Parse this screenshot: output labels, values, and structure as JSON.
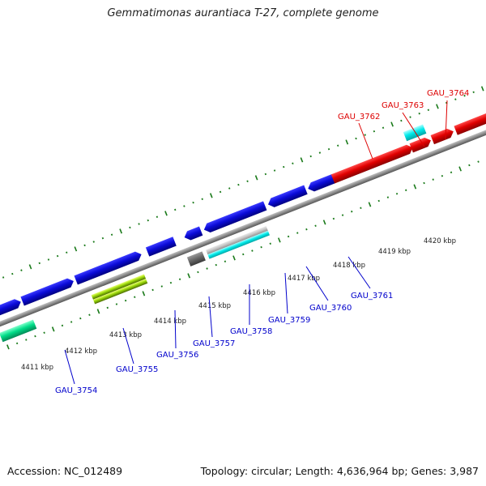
{
  "title": "Gemmatimonas aurantiaca T-27, complete genome",
  "footer": {
    "accession": "Accession: NC_012489",
    "summary": "Topology: circular; Length: 4,636,964 bp; Genes: 3,987"
  },
  "colors": {
    "tick": "#1a7a1a",
    "backbone": "#8c8c8c",
    "gene_default": "#0b0bd8",
    "label_blue": "#0000cc",
    "label_red": "#dd0000"
  },
  "kbp_labels": [
    "4411 kbp",
    "4412 kbp",
    "4413 kbp",
    "4414 kbp",
    "4415 kbp",
    "4416 kbp",
    "4417 kbp",
    "4418 kbp",
    "4419 kbp",
    "4420 kbp"
  ],
  "genes": [
    {
      "name": "GAU_3754",
      "label_color": "blue"
    },
    {
      "name": "GAU_3755",
      "label_color": "blue"
    },
    {
      "name": "GAU_3756",
      "label_color": "blue"
    },
    {
      "name": "GAU_3757",
      "label_color": "blue"
    },
    {
      "name": "GAU_3758",
      "label_color": "blue"
    },
    {
      "name": "GAU_3759",
      "label_color": "blue"
    },
    {
      "name": "GAU_3760",
      "label_color": "blue"
    },
    {
      "name": "GAU_3761",
      "label_color": "blue"
    },
    {
      "name": "GAU_3762",
      "label_color": "red"
    },
    {
      "name": "GAU_3763",
      "label_color": "red"
    },
    {
      "name": "GAU_3764",
      "label_color": "red"
    }
  ]
}
